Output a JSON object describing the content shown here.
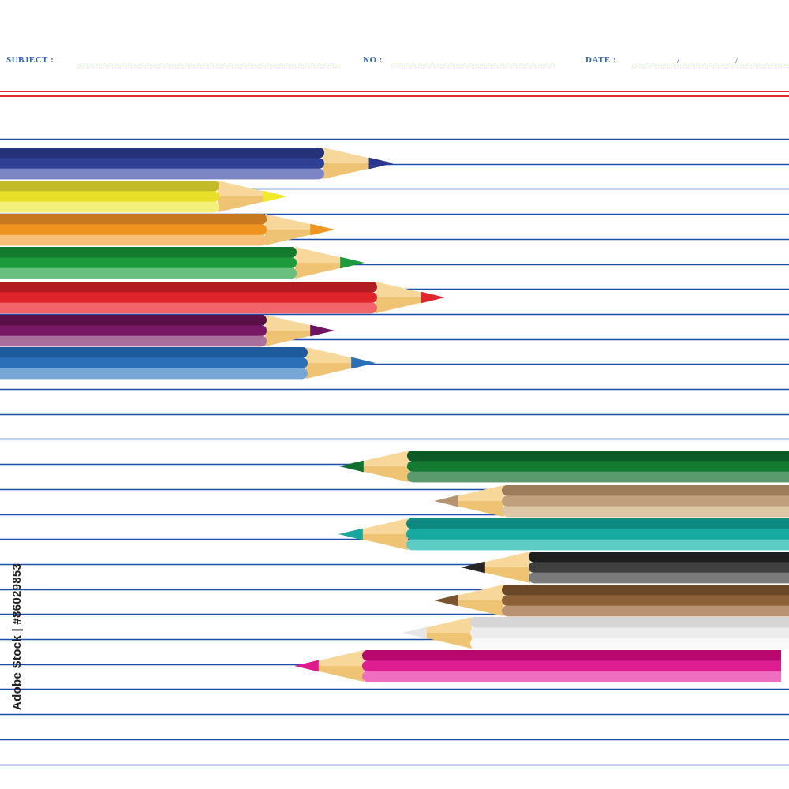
{
  "header": {
    "subject_label": "SUBJECT :",
    "no_label": "NO :",
    "date_label": "DATE :",
    "date_separator": "/"
  },
  "paper": {
    "line_color": "#1f4fa8",
    "margin_color": "#e12a2a",
    "header_color": "#2f63b5"
  },
  "pencils_left": [
    {
      "name": "navy",
      "dark": "#25327a",
      "mid": "#2e3f94",
      "light": "#7d86c4",
      "tip": "#2a3590"
    },
    {
      "name": "yellow",
      "dark": "#c3bb2a",
      "mid": "#e8e028",
      "light": "#f4f07c",
      "tip": "#f2ea28"
    },
    {
      "name": "orange",
      "dark": "#c8781e",
      "mid": "#ee941e",
      "light": "#f6bf78",
      "tip": "#f0961e"
    },
    {
      "name": "green",
      "dark": "#147a2e",
      "mid": "#1d9a3c",
      "light": "#68bf7e",
      "tip": "#1e9b3e"
    },
    {
      "name": "red",
      "dark": "#b31b22",
      "mid": "#e0242c",
      "light": "#f0646a",
      "tip": "#e1252d"
    },
    {
      "name": "purple",
      "dark": "#5a0f47",
      "mid": "#781865",
      "light": "#a8709a",
      "tip": "#6e1460"
    },
    {
      "name": "blue",
      "dark": "#1f5a9c",
      "mid": "#2a6fb8",
      "light": "#78a6d6",
      "tip": "#2a70b8"
    }
  ],
  "pencils_right": [
    {
      "name": "dark-green",
      "dark": "#0c5a25",
      "mid": "#147a32",
      "light": "#5a9a6c",
      "tip": "#107030"
    },
    {
      "name": "tan",
      "dark": "#9c7c5a",
      "mid": "#c0a07c",
      "light": "#ddc6a6",
      "tip": "#b49470"
    },
    {
      "name": "teal",
      "dark": "#0f8a80",
      "mid": "#17aaa0",
      "light": "#5cccc4",
      "tip": "#17a79e"
    },
    {
      "name": "black",
      "dark": "#1e1e1e",
      "mid": "#404040",
      "light": "#7a7a7a",
      "tip": "#262626"
    },
    {
      "name": "brown",
      "dark": "#6a4726",
      "mid": "#8c6138",
      "light": "#b89272",
      "tip": "#7a5530"
    },
    {
      "name": "white",
      "dark": "#d6d6d6",
      "mid": "#ececec",
      "light": "#f8f8f8",
      "tip": "#e6e6e6"
    },
    {
      "name": "pink",
      "dark": "#b8086e",
      "mid": "#de1d91",
      "light": "#f06ec0",
      "tip": "#e0198e"
    }
  ],
  "wood": {
    "light": "#f7d89a",
    "dark": "#e8b456"
  },
  "stock_id": "Adobe Stock | #86029853"
}
